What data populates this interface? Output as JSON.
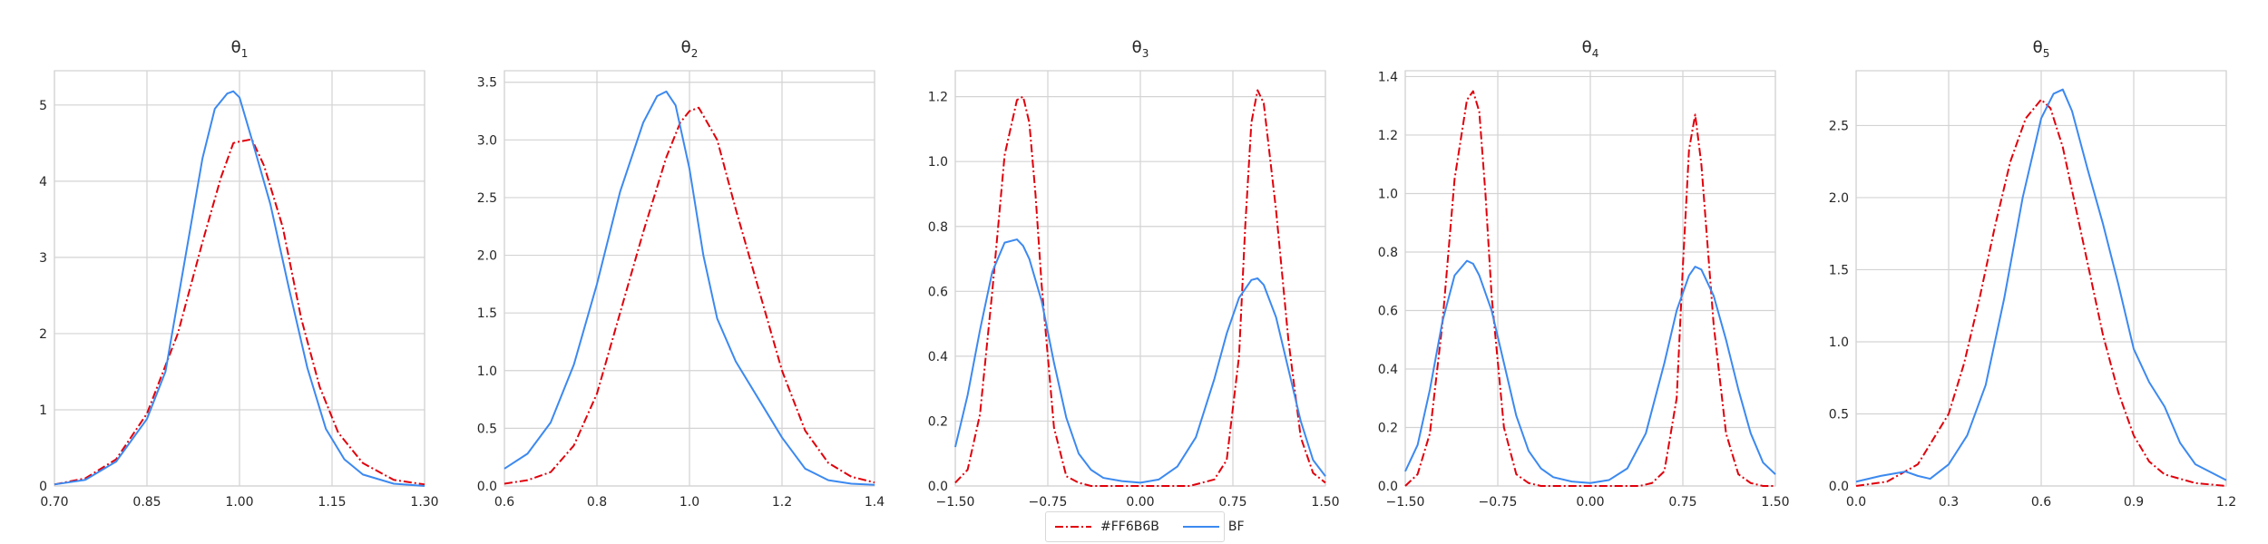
{
  "colors": {
    "series_1": "#e0000b",
    "series_2": "#3c89f0",
    "grid": "#d3d3d3",
    "text": "#262626"
  },
  "legend": [
    {
      "name": "#FF6B6B",
      "color": "#e0000b",
      "style": "dash-dot"
    },
    {
      "name": "BF",
      "color": "#3c89f0",
      "style": "solid"
    }
  ],
  "chart_data": [
    {
      "type": "line",
      "title": "θ1",
      "title_main": "θ",
      "title_sub": "1",
      "xlim": [
        0.7,
        1.3
      ],
      "ylim": [
        0,
        5.45
      ],
      "xticks": [
        0.7,
        0.85,
        1.0,
        1.15,
        1.3
      ],
      "xtick_labels": [
        "0.70",
        "0.85",
        "1.00",
        "1.15",
        "1.30"
      ],
      "yticks": [
        0,
        1,
        2,
        3,
        4,
        5
      ],
      "ytick_labels": [
        "0",
        "1",
        "2",
        "3",
        "4",
        "5"
      ],
      "grid": true,
      "series": [
        {
          "color": "#e0000b",
          "style": "dash-dot",
          "x": [
            0.7,
            0.75,
            0.8,
            0.85,
            0.9,
            0.94,
            0.97,
            0.99,
            1.0,
            1.02,
            1.04,
            1.07,
            1.1,
            1.13,
            1.16,
            1.2,
            1.25,
            1.3
          ],
          "y": [
            0.02,
            0.1,
            0.35,
            0.95,
            2.0,
            3.2,
            4.05,
            4.5,
            4.52,
            4.55,
            4.2,
            3.4,
            2.2,
            1.3,
            0.7,
            0.3,
            0.08,
            0.02
          ]
        },
        {
          "color": "#3c89f0",
          "style": "solid",
          "x": [
            0.7,
            0.75,
            0.8,
            0.85,
            0.88,
            0.91,
            0.94,
            0.96,
            0.98,
            0.99,
            1.0,
            1.02,
            1.05,
            1.08,
            1.11,
            1.14,
            1.17,
            1.2,
            1.25,
            1.3
          ],
          "y": [
            0.02,
            0.08,
            0.32,
            0.88,
            1.5,
            2.9,
            4.3,
            4.95,
            5.15,
            5.18,
            5.1,
            4.55,
            3.7,
            2.6,
            1.55,
            0.75,
            0.35,
            0.15,
            0.03,
            0.0
          ]
        }
      ]
    },
    {
      "type": "line",
      "title": "θ2",
      "title_main": "θ",
      "title_sub": "2",
      "xlim": [
        0.6,
        1.4
      ],
      "ylim": [
        0,
        3.6
      ],
      "xticks": [
        0.6,
        0.8,
        1.0,
        1.2,
        1.4
      ],
      "xtick_labels": [
        "0.6",
        "0.8",
        "1.0",
        "1.2",
        "1.4"
      ],
      "yticks": [
        0,
        0.5,
        1.0,
        1.5,
        2.0,
        2.5,
        3.0,
        3.5
      ],
      "ytick_labels": [
        "0.0",
        "0.5",
        "1.0",
        "1.5",
        "2.0",
        "2.5",
        "3.0",
        "3.5"
      ],
      "grid": true,
      "series": [
        {
          "color": "#e0000b",
          "style": "dash-dot",
          "x": [
            0.6,
            0.65,
            0.7,
            0.75,
            0.8,
            0.85,
            0.9,
            0.95,
            0.98,
            1.0,
            1.02,
            1.06,
            1.1,
            1.15,
            1.2,
            1.25,
            1.3,
            1.35,
            1.4
          ],
          "y": [
            0.02,
            0.05,
            0.12,
            0.35,
            0.8,
            1.5,
            2.2,
            2.85,
            3.15,
            3.25,
            3.28,
            3.0,
            2.4,
            1.7,
            1.0,
            0.48,
            0.2,
            0.08,
            0.03
          ]
        },
        {
          "color": "#3c89f0",
          "style": "solid",
          "x": [
            0.6,
            0.65,
            0.7,
            0.75,
            0.8,
            0.85,
            0.9,
            0.93,
            0.95,
            0.97,
            1.0,
            1.03,
            1.06,
            1.1,
            1.15,
            1.2,
            1.25,
            1.3,
            1.35,
            1.4
          ],
          "y": [
            0.15,
            0.28,
            0.55,
            1.05,
            1.75,
            2.55,
            3.15,
            3.38,
            3.42,
            3.3,
            2.75,
            2.0,
            1.45,
            1.08,
            0.75,
            0.42,
            0.15,
            0.05,
            0.02,
            0.01
          ]
        }
      ]
    },
    {
      "type": "line",
      "title": "θ3",
      "title_main": "θ",
      "title_sub": "3",
      "xlim": [
        -1.5,
        1.5
      ],
      "ylim": [
        0,
        1.28
      ],
      "xticks": [
        -1.5,
        -0.75,
        0.0,
        0.75,
        1.5
      ],
      "xtick_labels": [
        "−1.50",
        "−0.75",
        "0.00",
        "0.75",
        "1.50"
      ],
      "yticks": [
        0,
        0.2,
        0.4,
        0.6,
        0.8,
        1.0,
        1.2
      ],
      "ytick_labels": [
        "0.0",
        "0.2",
        "0.4",
        "0.6",
        "0.8",
        "1.0",
        "1.2"
      ],
      "grid": true,
      "series": [
        {
          "color": "#e0000b",
          "style": "dash-dot",
          "x": [
            -1.5,
            -1.4,
            -1.3,
            -1.2,
            -1.1,
            -1.0,
            -0.95,
            -0.9,
            -0.85,
            -0.8,
            -0.7,
            -0.6,
            -0.5,
            -0.4,
            0.0,
            0.4,
            0.6,
            0.7,
            0.8,
            0.85,
            0.9,
            0.95,
            1.0,
            1.1,
            1.2,
            1.3,
            1.4,
            1.5
          ],
          "y": [
            0.01,
            0.05,
            0.22,
            0.6,
            1.02,
            1.19,
            1.2,
            1.12,
            0.9,
            0.62,
            0.18,
            0.03,
            0.01,
            0.0,
            0.0,
            0.0,
            0.02,
            0.08,
            0.4,
            0.8,
            1.12,
            1.22,
            1.18,
            0.85,
            0.45,
            0.15,
            0.04,
            0.01
          ]
        },
        {
          "color": "#3c89f0",
          "style": "solid",
          "x": [
            -1.5,
            -1.4,
            -1.3,
            -1.2,
            -1.1,
            -1.0,
            -0.95,
            -0.9,
            -0.8,
            -0.7,
            -0.6,
            -0.5,
            -0.4,
            -0.3,
            -0.15,
            0.0,
            0.15,
            0.3,
            0.45,
            0.6,
            0.7,
            0.8,
            0.9,
            0.95,
            1.0,
            1.1,
            1.2,
            1.3,
            1.4,
            1.5
          ],
          "y": [
            0.12,
            0.28,
            0.48,
            0.66,
            0.75,
            0.76,
            0.74,
            0.7,
            0.57,
            0.38,
            0.21,
            0.1,
            0.05,
            0.025,
            0.015,
            0.01,
            0.02,
            0.06,
            0.15,
            0.33,
            0.47,
            0.58,
            0.635,
            0.64,
            0.62,
            0.52,
            0.36,
            0.2,
            0.08,
            0.03
          ]
        }
      ]
    },
    {
      "type": "line",
      "title": "θ4",
      "title_main": "θ",
      "title_sub": "4",
      "xlim": [
        -1.5,
        1.5
      ],
      "ylim": [
        0,
        1.42
      ],
      "xticks": [
        -1.5,
        -0.75,
        0.0,
        0.75,
        1.5
      ],
      "xtick_labels": [
        "−1.50",
        "−0.75",
        "0.00",
        "0.75",
        "1.50"
      ],
      "yticks": [
        0,
        0.2,
        0.4,
        0.6,
        0.8,
        1.0,
        1.2,
        1.4
      ],
      "ytick_labels": [
        "0.0",
        "0.2",
        "0.4",
        "0.6",
        "0.8",
        "1.0",
        "1.2",
        "1.4"
      ],
      "grid": true,
      "series": [
        {
          "color": "#e0000b",
          "style": "dash-dot",
          "x": [
            -1.5,
            -1.4,
            -1.3,
            -1.2,
            -1.1,
            -1.0,
            -0.95,
            -0.9,
            -0.85,
            -0.8,
            -0.7,
            -0.6,
            -0.5,
            -0.4,
            0.0,
            0.4,
            0.5,
            0.6,
            0.7,
            0.75,
            0.8,
            0.85,
            0.9,
            1.0,
            1.1,
            1.2,
            1.3,
            1.4,
            1.5
          ],
          "y": [
            0.0,
            0.04,
            0.18,
            0.55,
            1.05,
            1.32,
            1.35,
            1.28,
            1.0,
            0.65,
            0.2,
            0.04,
            0.01,
            0.0,
            0.0,
            0.0,
            0.01,
            0.05,
            0.3,
            0.75,
            1.15,
            1.27,
            1.1,
            0.55,
            0.18,
            0.04,
            0.01,
            0.0,
            0.0
          ]
        },
        {
          "color": "#3c89f0",
          "style": "solid",
          "x": [
            -1.5,
            -1.4,
            -1.3,
            -1.2,
            -1.1,
            -1.0,
            -0.95,
            -0.9,
            -0.8,
            -0.7,
            -0.6,
            -0.5,
            -0.4,
            -0.3,
            -0.15,
            0.0,
            0.15,
            0.3,
            0.45,
            0.6,
            0.7,
            0.8,
            0.85,
            0.9,
            1.0,
            1.1,
            1.2,
            1.3,
            1.4,
            1.5
          ],
          "y": [
            0.05,
            0.14,
            0.33,
            0.56,
            0.72,
            0.77,
            0.76,
            0.72,
            0.6,
            0.42,
            0.24,
            0.12,
            0.06,
            0.03,
            0.015,
            0.01,
            0.02,
            0.06,
            0.18,
            0.42,
            0.6,
            0.72,
            0.75,
            0.74,
            0.65,
            0.5,
            0.33,
            0.18,
            0.08,
            0.04
          ]
        }
      ]
    },
    {
      "type": "line",
      "title": "θ5",
      "title_main": "θ",
      "title_sub": "5",
      "xlim": [
        0.0,
        1.2
      ],
      "ylim": [
        0,
        2.88
      ],
      "xticks": [
        0.0,
        0.3,
        0.6,
        0.9,
        1.2
      ],
      "xtick_labels": [
        "0.0",
        "0.3",
        "0.6",
        "0.9",
        "1.2"
      ],
      "yticks": [
        0,
        0.5,
        1.0,
        1.5,
        2.0,
        2.5
      ],
      "ytick_labels": [
        "0.0",
        "0.5",
        "1.0",
        "1.5",
        "2.0",
        "2.5"
      ],
      "grid": true,
      "series": [
        {
          "color": "#e0000b",
          "style": "dash-dot",
          "x": [
            0.0,
            0.1,
            0.2,
            0.3,
            0.35,
            0.4,
            0.45,
            0.5,
            0.55,
            0.6,
            0.63,
            0.67,
            0.7,
            0.75,
            0.8,
            0.85,
            0.9,
            0.95,
            1.0,
            1.1,
            1.2
          ],
          "y": [
            0.0,
            0.03,
            0.15,
            0.5,
            0.85,
            1.3,
            1.8,
            2.25,
            2.55,
            2.68,
            2.62,
            2.35,
            2.05,
            1.55,
            1.05,
            0.65,
            0.35,
            0.17,
            0.08,
            0.02,
            0.0
          ]
        },
        {
          "color": "#3c89f0",
          "style": "solid",
          "x": [
            0.0,
            0.08,
            0.16,
            0.2,
            0.24,
            0.3,
            0.36,
            0.42,
            0.48,
            0.54,
            0.6,
            0.64,
            0.67,
            0.7,
            0.75,
            0.8,
            0.85,
            0.9,
            0.95,
            1.0,
            1.05,
            1.1,
            1.2
          ],
          "y": [
            0.03,
            0.07,
            0.1,
            0.07,
            0.05,
            0.15,
            0.35,
            0.7,
            1.3,
            2.0,
            2.55,
            2.72,
            2.75,
            2.6,
            2.2,
            1.82,
            1.4,
            0.95,
            0.72,
            0.55,
            0.3,
            0.15,
            0.04
          ]
        }
      ]
    }
  ]
}
